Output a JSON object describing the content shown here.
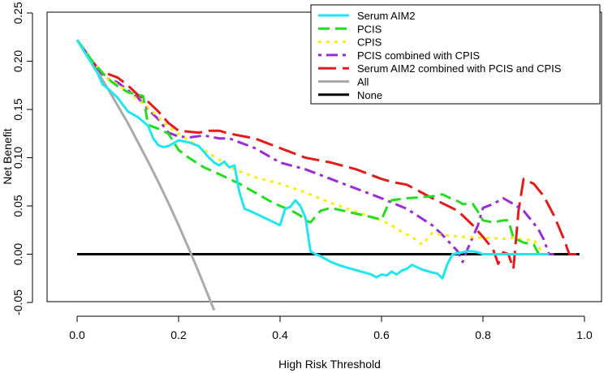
{
  "chart_data": {
    "type": "line",
    "title": "",
    "xlabel": "High Risk Threshold",
    "ylabel": "Net Benefit",
    "xlim": [
      0.0,
      1.0
    ],
    "ylim": [
      -0.05,
      0.25
    ],
    "xticks": [
      "0.0",
      "0.2",
      "0.4",
      "0.6",
      "0.8",
      "1.0"
    ],
    "yticks": [
      "-0.05",
      "0.00",
      "0.05",
      "0.10",
      "0.15",
      "0.20",
      "0.25"
    ],
    "legend": {
      "position": "top-right"
    },
    "series": [
      {
        "name": "Serum AIM2",
        "color": "#22e5f0",
        "dash": "solid",
        "x": [
          0.0,
          0.02,
          0.04,
          0.05,
          0.06,
          0.08,
          0.1,
          0.12,
          0.14,
          0.15,
          0.16,
          0.17,
          0.18,
          0.2,
          0.22,
          0.24,
          0.26,
          0.27,
          0.28,
          0.29,
          0.3,
          0.31,
          0.32,
          0.33,
          0.34,
          0.36,
          0.38,
          0.4,
          0.41,
          0.42,
          0.43,
          0.44,
          0.45,
          0.46,
          0.47,
          0.48,
          0.5,
          0.52,
          0.54,
          0.56,
          0.58,
          0.59,
          0.6,
          0.61,
          0.62,
          0.63,
          0.64,
          0.65,
          0.66,
          0.68,
          0.7,
          0.71,
          0.72,
          0.73,
          0.74,
          0.76,
          0.77,
          0.78,
          0.79,
          0.8,
          0.85,
          0.9,
          0.93
        ],
        "y": [
          0.222,
          0.205,
          0.188,
          0.176,
          0.172,
          0.162,
          0.148,
          0.142,
          0.133,
          0.12,
          0.113,
          0.111,
          0.112,
          0.118,
          0.116,
          0.112,
          0.1,
          0.095,
          0.092,
          0.096,
          0.09,
          0.092,
          0.064,
          0.047,
          0.045,
          0.04,
          0.035,
          0.03,
          0.047,
          0.049,
          0.056,
          0.05,
          0.038,
          0.003,
          0.0,
          -0.002,
          -0.008,
          -0.012,
          -0.015,
          -0.018,
          -0.021,
          -0.024,
          -0.021,
          -0.022,
          -0.018,
          -0.021,
          -0.017,
          -0.015,
          -0.011,
          -0.016,
          -0.019,
          -0.02,
          -0.025,
          -0.01,
          0.0,
          0.002,
          0.003,
          0.003,
          0.002,
          0.0,
          0.0,
          0.0,
          0.0
        ]
      },
      {
        "name": "PCIS",
        "color": "#22dd22",
        "dash": "dashed",
        "x": [
          0.0,
          0.03,
          0.06,
          0.08,
          0.1,
          0.12,
          0.13,
          0.14,
          0.16,
          0.18,
          0.2,
          0.22,
          0.25,
          0.28,
          0.3,
          0.32,
          0.35,
          0.38,
          0.4,
          0.42,
          0.44,
          0.45,
          0.46,
          0.48,
          0.5,
          0.55,
          0.6,
          0.61,
          0.62,
          0.65,
          0.7,
          0.72,
          0.74,
          0.75,
          0.76,
          0.78,
          0.79,
          0.8,
          0.82,
          0.84,
          0.85,
          0.86,
          0.88,
          0.9,
          0.91
        ],
        "y": [
          0.222,
          0.2,
          0.182,
          0.174,
          0.168,
          0.165,
          0.164,
          0.134,
          0.13,
          0.125,
          0.108,
          0.1,
          0.09,
          0.083,
          0.078,
          0.073,
          0.064,
          0.055,
          0.05,
          0.046,
          0.04,
          0.035,
          0.033,
          0.045,
          0.048,
          0.042,
          0.036,
          0.048,
          0.056,
          0.058,
          0.06,
          0.062,
          0.057,
          0.055,
          0.052,
          0.052,
          0.044,
          0.035,
          0.033,
          0.035,
          0.035,
          0.017,
          0.012,
          0.01,
          0.0
        ]
      },
      {
        "name": "CPIS",
        "color": "#f7ef0a",
        "dash": "dotted",
        "x": [
          0.0,
          0.03,
          0.06,
          0.08,
          0.1,
          0.14,
          0.18,
          0.2,
          0.25,
          0.28,
          0.3,
          0.35,
          0.4,
          0.45,
          0.5,
          0.55,
          0.6,
          0.62,
          0.64,
          0.66,
          0.68,
          0.7,
          0.72,
          0.76,
          0.8,
          0.84,
          0.86,
          0.88,
          0.9,
          0.92
        ],
        "y": [
          0.222,
          0.2,
          0.182,
          0.176,
          0.168,
          0.152,
          0.132,
          0.125,
          0.108,
          0.098,
          0.09,
          0.08,
          0.073,
          0.064,
          0.053,
          0.044,
          0.035,
          0.03,
          0.023,
          0.018,
          0.01,
          0.022,
          0.02,
          0.018,
          0.017,
          0.016,
          0.017,
          0.015,
          0.015,
          0.0
        ]
      },
      {
        "name": "PCIS combined with CPIS",
        "color": "#9b2bd4",
        "dash": "dotdash",
        "x": [
          0.0,
          0.03,
          0.05,
          0.06,
          0.07,
          0.08,
          0.1,
          0.12,
          0.14,
          0.16,
          0.18,
          0.2,
          0.22,
          0.25,
          0.28,
          0.3,
          0.35,
          0.4,
          0.45,
          0.5,
          0.55,
          0.58,
          0.6,
          0.65,
          0.7,
          0.72,
          0.75,
          0.76,
          0.77,
          0.78,
          0.79,
          0.8,
          0.82,
          0.84,
          0.86,
          0.88,
          0.9,
          0.91,
          0.92,
          0.93,
          0.94
        ],
        "y": [
          0.222,
          0.2,
          0.186,
          0.182,
          0.18,
          0.178,
          0.17,
          0.162,
          0.15,
          0.14,
          0.126,
          0.122,
          0.121,
          0.123,
          0.12,
          0.12,
          0.11,
          0.095,
          0.088,
          0.078,
          0.068,
          0.062,
          0.058,
          0.047,
          0.03,
          0.02,
          0.003,
          -0.008,
          0.006,
          0.018,
          0.03,
          0.048,
          0.052,
          0.058,
          0.052,
          0.045,
          0.032,
          0.025,
          0.015,
          0.0,
          0.0
        ]
      },
      {
        "name": "Serum AIM2 combined with PCIS and CPIS",
        "color": "#e21b1b",
        "dash": "longdash",
        "x": [
          0.0,
          0.03,
          0.05,
          0.06,
          0.07,
          0.08,
          0.1,
          0.12,
          0.14,
          0.16,
          0.18,
          0.2,
          0.22,
          0.24,
          0.26,
          0.28,
          0.3,
          0.35,
          0.4,
          0.45,
          0.5,
          0.55,
          0.6,
          0.62,
          0.65,
          0.7,
          0.75,
          0.78,
          0.8,
          0.82,
          0.83,
          0.84,
          0.85,
          0.86,
          0.87,
          0.88,
          0.9,
          0.92,
          0.94,
          0.96,
          0.97,
          0.99
        ],
        "y": [
          0.222,
          0.2,
          0.186,
          0.187,
          0.185,
          0.183,
          0.175,
          0.165,
          0.158,
          0.148,
          0.136,
          0.128,
          0.127,
          0.126,
          0.128,
          0.128,
          0.125,
          0.12,
          0.11,
          0.1,
          0.095,
          0.088,
          0.078,
          0.075,
          0.072,
          0.058,
          0.045,
          0.03,
          0.018,
          0.005,
          -0.01,
          0.002,
          0.0,
          -0.015,
          0.045,
          0.078,
          0.073,
          0.06,
          0.04,
          0.015,
          0.0,
          0.0
        ]
      },
      {
        "name": "All",
        "color": "#aaaaaa",
        "dash": "solid",
        "x": [
          0.0,
          0.02,
          0.04,
          0.06,
          0.08,
          0.1,
          0.12,
          0.14,
          0.16,
          0.18,
          0.2,
          0.22,
          0.24,
          0.26,
          0.27
        ],
        "y": [
          0.222,
          0.206,
          0.189,
          0.172,
          0.154,
          0.136,
          0.116,
          0.096,
          0.075,
          0.053,
          0.03,
          0.006,
          -0.019,
          -0.045,
          -0.058
        ]
      },
      {
        "name": "None",
        "color": "#000000",
        "dash": "solid",
        "x": [
          0.0,
          0.99
        ],
        "y": [
          0.0,
          0.0
        ]
      }
    ]
  }
}
